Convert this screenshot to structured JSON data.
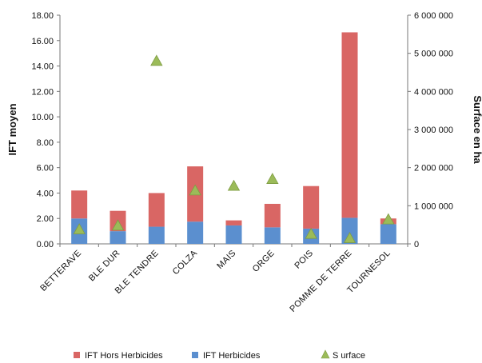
{
  "chart_data": {
    "type": "bar",
    "stacked": true,
    "categories": [
      "BETTERAVE",
      "BLE DUR",
      "BLE TENDRE",
      "COLZA",
      "MAIS",
      "ORGE",
      "POIS",
      "POMME DE TERRE",
      "TOURNESOL"
    ],
    "series": [
      {
        "name": "IFT Herbicides",
        "type": "bar",
        "axis": "left",
        "color": "#5b8fcf",
        "values": [
          2.0,
          1.0,
          1.35,
          1.75,
          1.45,
          1.3,
          1.2,
          2.05,
          1.55
        ]
      },
      {
        "name": "IFT Hors Herbicides",
        "type": "bar",
        "axis": "left",
        "color": "#d96664",
        "values": [
          2.2,
          1.6,
          2.65,
          4.35,
          0.4,
          1.85,
          3.35,
          14.6,
          0.45
        ]
      },
      {
        "name": "S urface",
        "type": "marker",
        "axis": "right",
        "color": "#9bbb59",
        "values": [
          380000,
          480000,
          4800000,
          1400000,
          1520000,
          1700000,
          260000,
          150000,
          640000
        ]
      }
    ],
    "ylabel": "IFT moyen",
    "y2label": "Surface en ha",
    "ylim": [
      0,
      18
    ],
    "y2lim": [
      0,
      6000000
    ],
    "yticks": [
      "0.00",
      "2.00",
      "4.00",
      "6.00",
      "8.00",
      "10.00",
      "12.00",
      "14.00",
      "16.00",
      "18.00"
    ],
    "y2ticks": [
      "0",
      "1 000 000",
      "2 000 000",
      "3 000 000",
      "4 000 000",
      "5 000 000",
      "6 000 000"
    ],
    "grid": false,
    "legend_position": "bottom",
    "legend_order": [
      "IFT Hors Herbicides",
      "IFT Herbicides",
      "S urface"
    ]
  }
}
